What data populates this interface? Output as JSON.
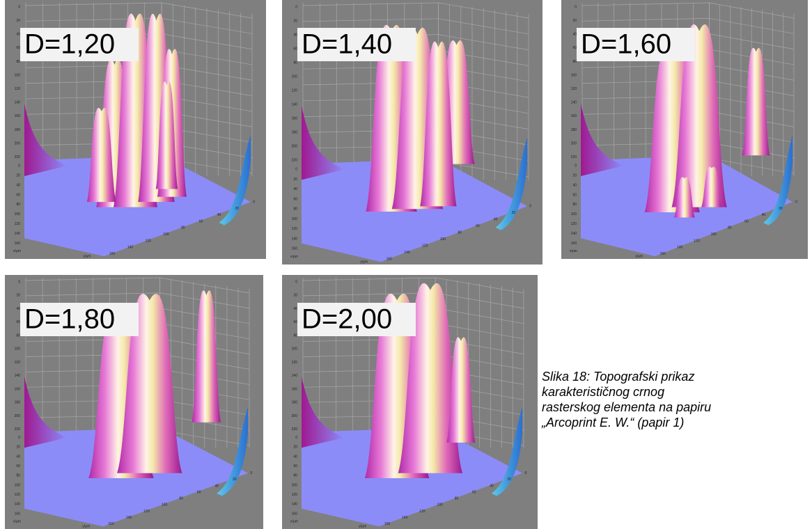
{
  "panels": [
    {
      "label": "D=1,20"
    },
    {
      "label": "D=1,40"
    },
    {
      "label": "D=1,60"
    },
    {
      "label": "D=1,80"
    },
    {
      "label": "D=2,00"
    }
  ],
  "axis": {
    "z_ticks": [
      "0",
      "20",
      "40",
      "60",
      "80",
      "100",
      "120",
      "140",
      "160",
      "180",
      "200",
      "220"
    ],
    "xy_ticks": [
      "0",
      "20",
      "40",
      "60",
      "80",
      "100",
      "120",
      "140",
      "160"
    ],
    "x_label": "x/µm",
    "y_label": "y/µm"
  },
  "caption": {
    "lines": [
      "Slika 18: Topografski prikaz",
      "karakterističnog crnog",
      "rasterskog elementa na papiru",
      "„Arcoprint E. W.“ (papir 1)"
    ]
  }
}
